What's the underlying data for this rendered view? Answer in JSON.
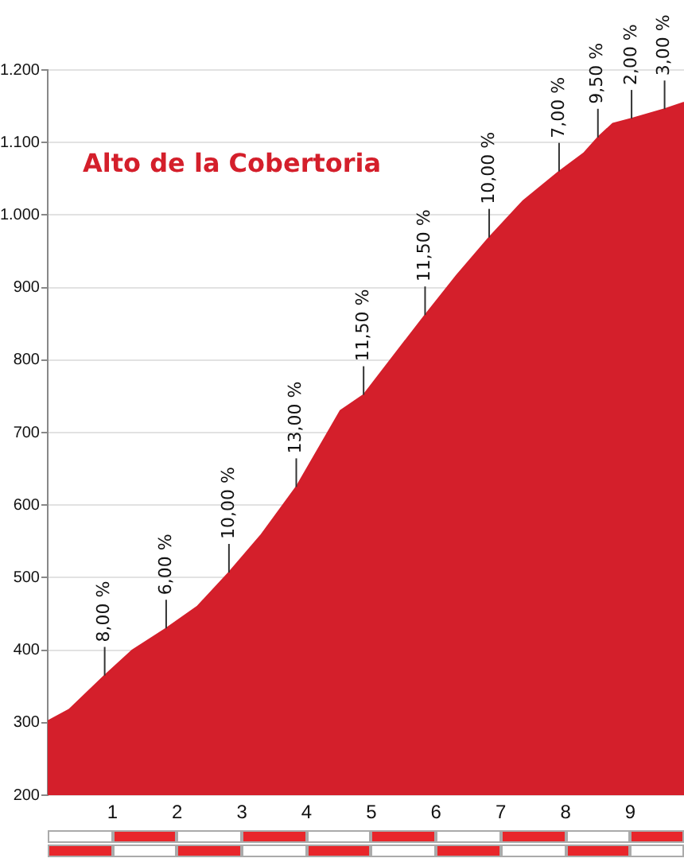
{
  "chart_data": {
    "type": "area",
    "title": "Alto de la Cobertoria",
    "x": [
      0,
      0.33,
      0.88,
      1.31,
      1.83,
      2.31,
      2.8,
      3.29,
      3.84,
      4.52,
      4.88,
      5.83,
      6.32,
      6.82,
      7.34,
      7.9,
      8.28,
      8.5,
      8.73,
      9.02,
      9.53,
      9.83
    ],
    "series": [
      {
        "color": "#d41f2b",
        "values": [
          302,
          318,
          365,
          400,
          430,
          460,
          507,
          558,
          625,
          730,
          752,
          862,
          917,
          969,
          1019,
          1060,
          1085,
          1107,
          1126,
          1133,
          1146,
          1155
        ]
      }
    ],
    "xlim": [
      0,
      9.83
    ],
    "xticks": [
      1,
      2,
      3,
      4,
      5,
      6,
      7,
      8,
      9
    ],
    "ylim": [
      200,
      1200
    ],
    "yticks": [
      200,
      300,
      400,
      500,
      600,
      700,
      800,
      900,
      {
        "value": 1000,
        "label": "1.000"
      },
      {
        "value": 1100,
        "label": "1.100"
      },
      {
        "value": 1200,
        "label": "1.200"
      }
    ],
    "grid": "y",
    "legend": false,
    "annotations": [
      {
        "text": "8,00 %",
        "x": 0.88,
        "y": 365
      },
      {
        "text": "6,00 %",
        "x": 1.83,
        "y": 430
      },
      {
        "text": "10,00 %",
        "x": 2.8,
        "y": 507
      },
      {
        "text": "13,00 %",
        "x": 3.84,
        "y": 625
      },
      {
        "text": "11,50 %",
        "x": 4.88,
        "y": 752
      },
      {
        "text": "11,50 %",
        "x": 5.83,
        "y": 862
      },
      {
        "text": "10,00 %",
        "x": 6.82,
        "y": 969
      },
      {
        "text": "7,00 %",
        "x": 7.9,
        "y": 1060
      },
      {
        "text": "9,50 %",
        "x": 8.5,
        "y": 1107
      },
      {
        "text": "2,00 %",
        "x": 9.02,
        "y": 1133
      },
      {
        "text": "3,00 %",
        "x": 9.53,
        "y": 1146
      }
    ]
  }
}
